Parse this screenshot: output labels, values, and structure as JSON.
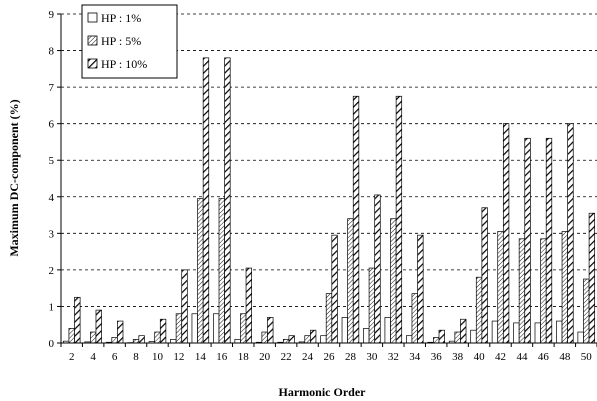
{
  "chart_data": {
    "type": "bar",
    "title": "",
    "xlabel": "Harmonic Order",
    "ylabel": "Maximum DC-component (%)",
    "ylim": [
      0,
      9
    ],
    "yticks": [
      0,
      1,
      2,
      3,
      4,
      5,
      6,
      7,
      8,
      9
    ],
    "grid": "horizontal-dashed",
    "legend_position": "top-left",
    "categories": [
      "2",
      "4",
      "6",
      "8",
      "10",
      "12",
      "14",
      "16",
      "18",
      "20",
      "22",
      "24",
      "26",
      "28",
      "30",
      "32",
      "34",
      "36",
      "38",
      "40",
      "42",
      "44",
      "46",
      "48",
      "50"
    ],
    "series": [
      {
        "name": "HP : 1%",
        "pattern": "white",
        "values": [
          0.05,
          0.03,
          0.02,
          0.01,
          0.04,
          0.1,
          0.8,
          0.8,
          0.1,
          0.02,
          0.02,
          0.03,
          0.2,
          0.7,
          0.4,
          0.7,
          0.2,
          0.02,
          0.05,
          0.35,
          0.6,
          0.55,
          0.55,
          0.6,
          0.3
        ]
      },
      {
        "name": "HP : 5%",
        "pattern": "light-hatch",
        "values": [
          0.4,
          0.3,
          0.15,
          0.1,
          0.3,
          0.8,
          3.95,
          3.95,
          0.8,
          0.3,
          0.1,
          0.2,
          1.35,
          3.4,
          2.05,
          3.4,
          1.35,
          0.15,
          0.3,
          1.8,
          3.05,
          2.85,
          2.85,
          3.05,
          1.75
        ]
      },
      {
        "name": "HP : 10%",
        "pattern": "heavy-hatch",
        "values": [
          1.25,
          0.9,
          0.6,
          0.2,
          0.65,
          2.0,
          7.8,
          7.8,
          2.05,
          0.7,
          0.2,
          0.35,
          2.95,
          6.75,
          4.05,
          6.75,
          2.95,
          0.35,
          0.65,
          3.7,
          6.0,
          5.6,
          5.6,
          6.0,
          3.55
        ]
      }
    ]
  }
}
